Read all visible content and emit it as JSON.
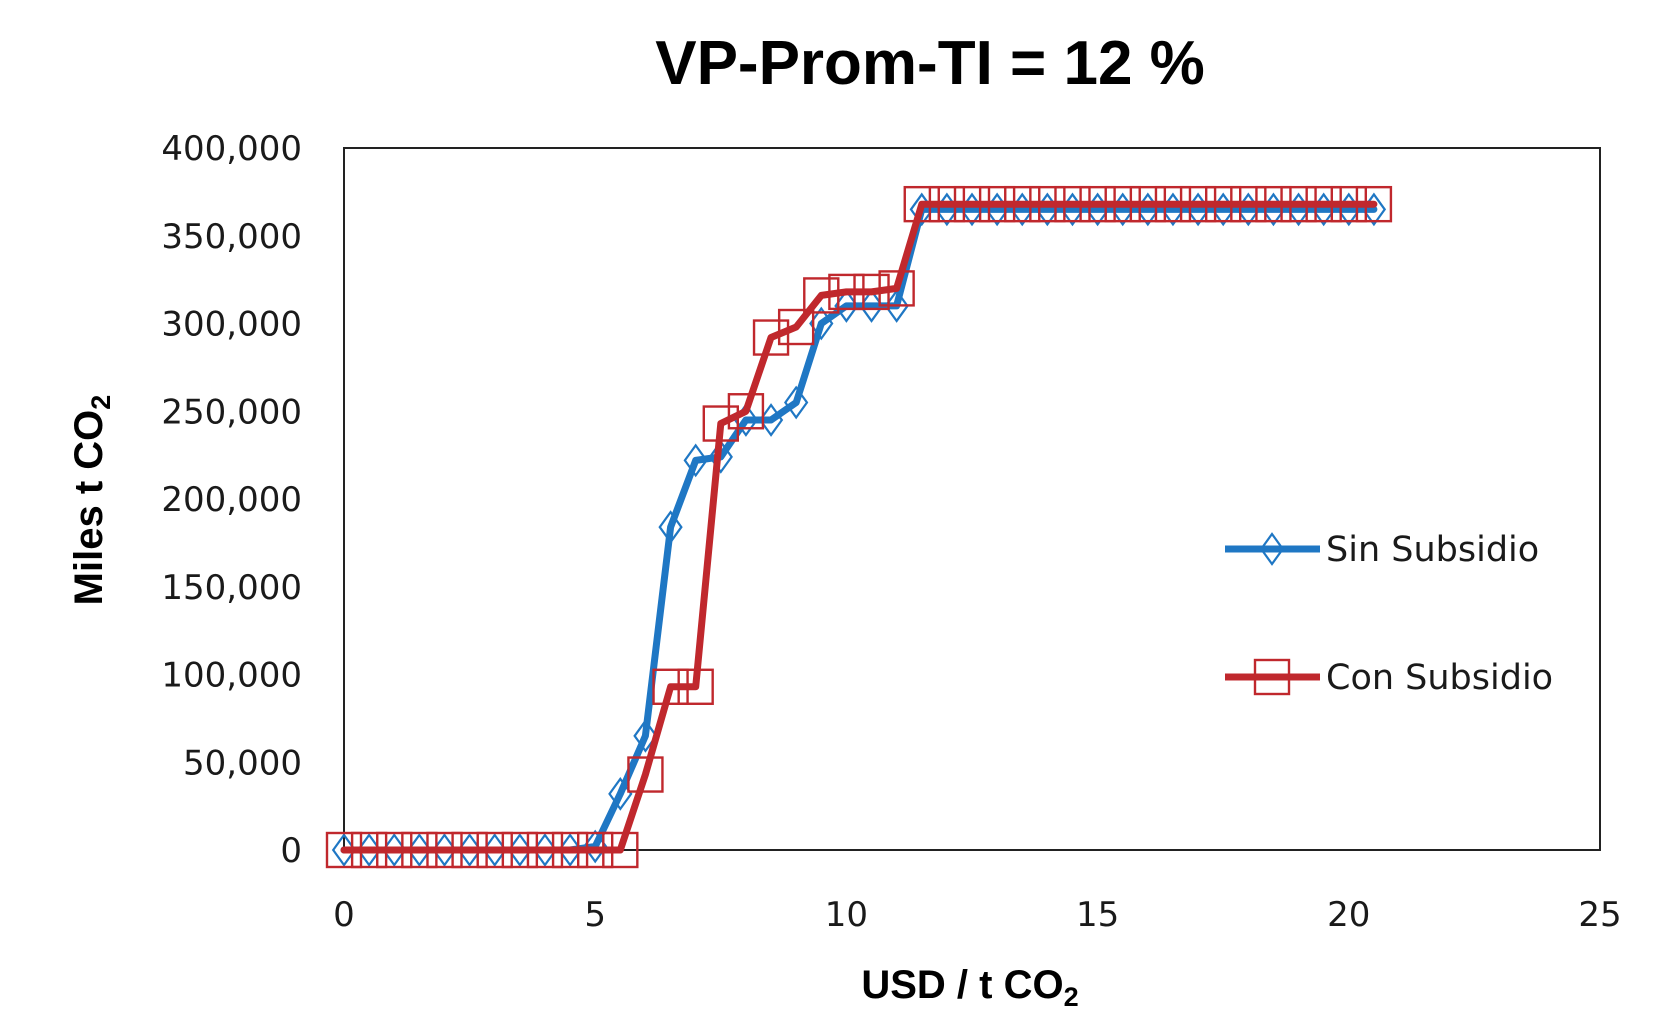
{
  "chart_data": {
    "type": "line",
    "title": "VP-Prom-TI = 12 %",
    "xlabel": {
      "main": "USD / t CO",
      "sub": "2"
    },
    "ylabel": {
      "main": "Miles t CO",
      "sub": "2"
    },
    "xlim": [
      0,
      25
    ],
    "ylim": [
      0,
      400000
    ],
    "x_ticks": [
      "0",
      "5",
      "10",
      "15",
      "20",
      "25"
    ],
    "y_ticks": [
      "0",
      "50,000",
      "100,000",
      "150,000",
      "200,000",
      "250,000",
      "300,000",
      "350,000",
      "400,000"
    ],
    "grid": false,
    "legend_position": "right",
    "series": [
      {
        "name": "Sin Subsidio",
        "color": "#1f77c4",
        "marker": "diamond",
        "x": [
          0,
          0.5,
          1,
          1.5,
          2,
          2.5,
          3,
          3.5,
          4,
          4.5,
          5,
          5.5,
          6,
          6.5,
          7,
          7.5,
          8,
          8.5,
          9,
          9.5,
          10,
          10.5,
          11,
          11.5,
          12,
          12.5,
          13,
          13.5,
          14,
          14.5,
          15,
          15.5,
          16,
          16.5,
          17,
          17.5,
          18,
          18.5,
          19,
          19.5,
          20,
          20.5
        ],
        "y": [
          0,
          0,
          0,
          0,
          0,
          0,
          0,
          0,
          0,
          0,
          2000,
          32000,
          65000,
          184000,
          222000,
          224000,
          245000,
          245000,
          255000,
          300000,
          310000,
          310000,
          310000,
          365000,
          365000,
          365000,
          365000,
          365000,
          365000,
          365000,
          365000,
          365000,
          365000,
          365000,
          365000,
          365000,
          365000,
          365000,
          365000,
          365000,
          365000,
          365000
        ]
      },
      {
        "name": "Con Subsidio",
        "color": "#c0282d",
        "marker": "square",
        "x": [
          0,
          0.5,
          1,
          1.5,
          2,
          2.5,
          3,
          3.5,
          4,
          4.5,
          5,
          5.5,
          6,
          6.5,
          7,
          7.5,
          8,
          8.5,
          9,
          9.5,
          10,
          10.5,
          11,
          11.5,
          12,
          12.5,
          13,
          13.5,
          14,
          14.5,
          15,
          15.5,
          16,
          16.5,
          17,
          17.5,
          18,
          18.5,
          19,
          19.5,
          20,
          20.5
        ],
        "y": [
          0,
          0,
          0,
          0,
          0,
          0,
          0,
          0,
          0,
          0,
          0,
          0,
          43000,
          93000,
          93000,
          243000,
          250000,
          292000,
          298000,
          316000,
          318000,
          318000,
          320000,
          368000,
          368000,
          368000,
          368000,
          368000,
          368000,
          368000,
          368000,
          368000,
          368000,
          368000,
          368000,
          368000,
          368000,
          368000,
          368000,
          368000,
          368000,
          368000
        ]
      }
    ]
  }
}
